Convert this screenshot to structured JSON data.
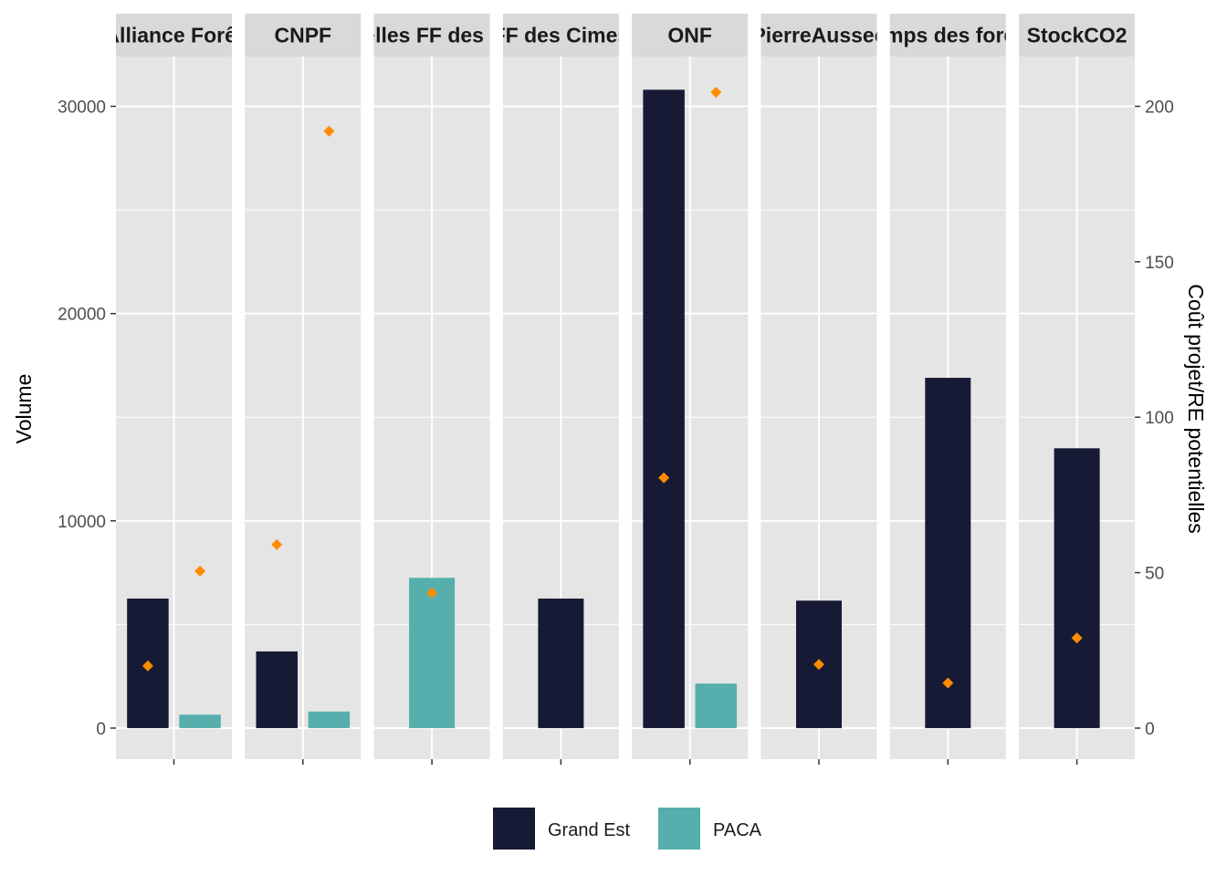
{
  "chart_data": {
    "type": "bar",
    "facets": [
      {
        "label": "Alliance Forêt",
        "groups": [
          "Grand Est",
          "PACA"
        ],
        "volume": [
          6250,
          650
        ],
        "cost": [
          20,
          50.5
        ]
      },
      {
        "label": "CNPF",
        "groups": [
          "Grand Est",
          "PACA"
        ],
        "volume": [
          3700,
          800
        ],
        "cost": [
          59,
          192
        ]
      },
      {
        "label": "Nouvelles FF des Cimes",
        "groups": [
          "PACA"
        ],
        "volume": [
          7250
        ],
        "cost": [
          43.5
        ]
      },
      {
        "label": "FF des Cimes",
        "groups": [
          "Grand Est"
        ],
        "volume": [
          6250
        ],
        "cost": [
          null
        ]
      },
      {
        "label": "ONF",
        "groups": [
          "Grand Est",
          "PACA"
        ],
        "volume": [
          30800,
          2150
        ],
        "cost": [
          80.5,
          204.5
        ]
      },
      {
        "label": "PierreAussec",
        "groups": [
          "Grand Est"
        ],
        "volume": [
          6150
        ],
        "cost": [
          20.5
        ]
      },
      {
        "label": "Temps des forêts",
        "groups": [
          "Grand Est"
        ],
        "volume": [
          16900
        ],
        "cost": [
          14.5
        ]
      },
      {
        "label": "StockCO2",
        "groups": [
          "Grand Est"
        ],
        "volume": [
          13500
        ],
        "cost": [
          29
        ]
      }
    ],
    "y_left": {
      "label": "Volume",
      "ticks": [
        0,
        10000,
        20000,
        30000
      ],
      "lim": [
        -1500,
        32400
      ]
    },
    "y_right": {
      "label": "Coût projet/RE potentielles",
      "ticks": [
        0,
        50,
        100,
        150,
        200
      ],
      "lim": [
        -10,
        216
      ]
    },
    "legend": {
      "position": "bottom",
      "entries": [
        {
          "name": "Grand Est",
          "color": "#171a35"
        },
        {
          "name": "PACA",
          "color": "#56afac"
        }
      ]
    },
    "colors": {
      "Grand Est": "#171a35",
      "PACA": "#56afac",
      "point": "#ff8c00",
      "panel": "#e5e5e5",
      "strip": "#d9d9d9",
      "grid": "#ffffff"
    },
    "grid": true
  }
}
